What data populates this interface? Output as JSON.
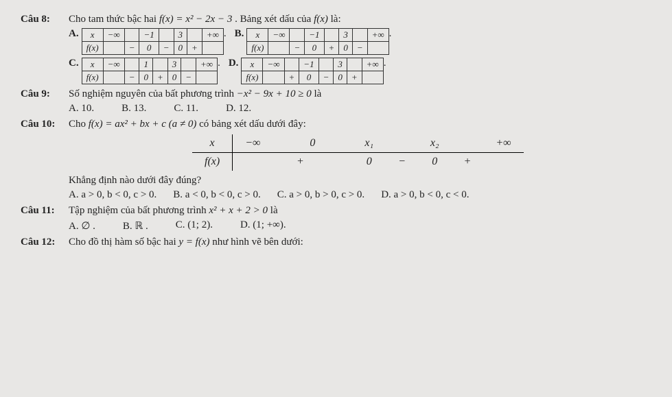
{
  "q8": {
    "label": "Câu 8:",
    "stem_pre": "Cho tam thức bậc hai ",
    "stem_fx": "f(x) = x² − 2x − 3",
    "stem_post": ". Bảng xét dấu của ",
    "stem_fx2": "f(x)",
    "stem_end": " là:",
    "A": "A.",
    "B": "B.",
    "C": "C.",
    "D": "D.",
    "row_x": "x",
    "row_fx": "f(x)",
    "neg_inf": "−∞",
    "pos_inf": "+∞",
    "tA": {
      "c1": "−1",
      "c2": "3",
      "s": [
        "−",
        "0",
        "−",
        "0",
        "+"
      ]
    },
    "tB": {
      "c1": "−1",
      "c2": "3",
      "s": [
        "−",
        "0",
        "+",
        "0",
        "−"
      ]
    },
    "tC": {
      "c1": "1",
      "c2": "3",
      "s": [
        "−",
        "0",
        "+",
        "0",
        "−"
      ]
    },
    "tD": {
      "c1": "−1",
      "c2": "3",
      "s": [
        "+",
        "0",
        "−",
        "0",
        "+"
      ]
    }
  },
  "q9": {
    "label": "Câu 9:",
    "stem_pre": "Số nghiệm nguyên của bất phương trình ",
    "stem_eq": "−x² − 9x + 10 ≥ 0",
    "stem_post": " là",
    "A": "A. 10.",
    "B": "B. 13.",
    "C": "C. 11.",
    "D": "D. 12."
  },
  "q10": {
    "label": "Câu 10:",
    "stem_pre": "Cho ",
    "stem_eq": "f(x) = ax² + bx + c (a ≠ 0)",
    "stem_post": " có bảng xét dấu dưới đây:",
    "t": {
      "x": "x",
      "fx": "f(x)",
      "neg_inf": "−∞",
      "zero": "0",
      "x1": "x₁",
      "x2": "x₂",
      "pos_inf": "+∞",
      "s": [
        "+",
        "0",
        "−",
        "0",
        "+"
      ]
    },
    "sub": "Khẳng định nào dưới đây đúng?",
    "A": "A. a > 0, b < 0, c > 0.",
    "B": "B. a < 0, b < 0, c > 0.",
    "C": "C. a > 0, b > 0, c > 0.",
    "D": "D. a > 0, b < 0, c < 0."
  },
  "q11": {
    "label": "Câu 11:",
    "stem_pre": "Tập nghiệm của bất phương trình ",
    "stem_eq": "x² + x + 2 > 0",
    "stem_post": " là",
    "A": "A. ∅ .",
    "B": "B. ℝ .",
    "C": "C. (1; 2).",
    "D": "D. (1; +∞)."
  },
  "q12": {
    "label": "Câu 12:",
    "stem_pre": "Cho đồ thị hàm số bậc hai ",
    "stem_eq": "y = f(x)",
    "stem_post": " như hình vẽ bên dưới:"
  }
}
